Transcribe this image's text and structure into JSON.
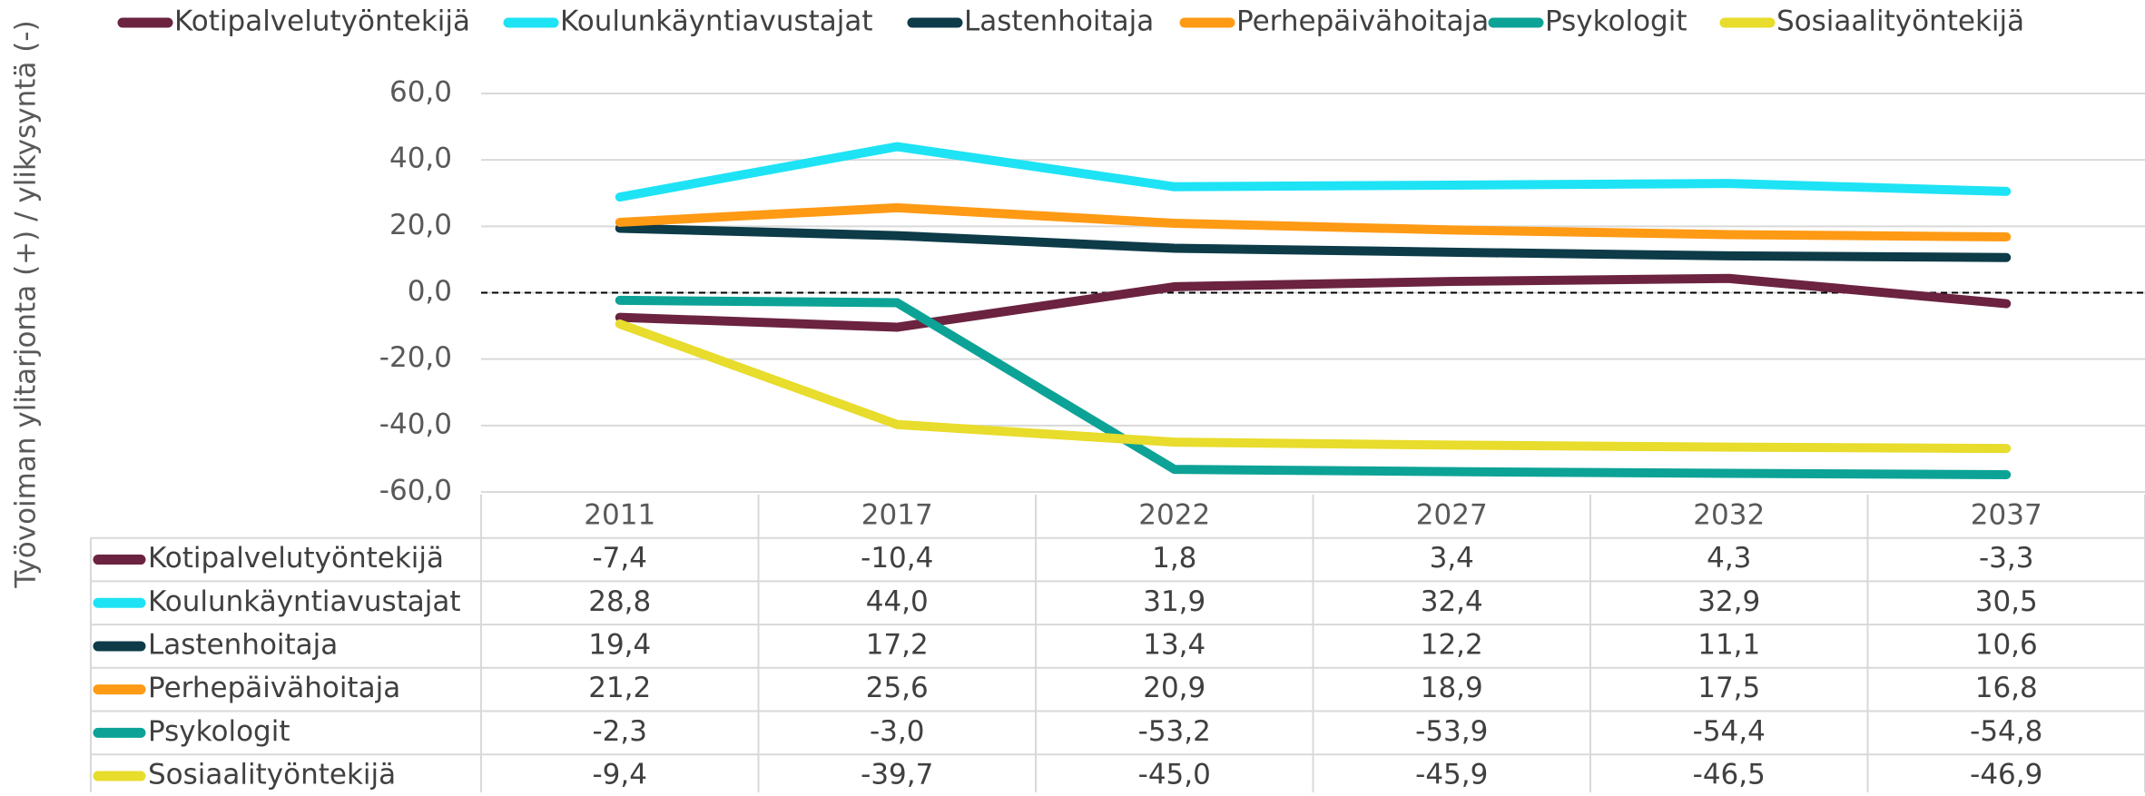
{
  "chart_data": {
    "type": "line",
    "y_label": "Työvoiman ylitarjonta (+) / ylikysyntä (-)",
    "categories": [
      "2011",
      "2017",
      "2022",
      "2027",
      "2032",
      "2037"
    ],
    "ylim": [
      -60,
      60
    ],
    "yticks": [
      {
        "value": -60,
        "label": "-60,0"
      },
      {
        "value": -40,
        "label": "-40,0"
      },
      {
        "value": -20,
        "label": "-20,0"
      },
      {
        "value": 0,
        "label": "0,0"
      },
      {
        "value": 20,
        "label": "20,0"
      },
      {
        "value": 40,
        "label": "40,0"
      },
      {
        "value": 60,
        "label": "60,0"
      }
    ],
    "grid": true,
    "legend": "top",
    "series": [
      {
        "name": "Kotipalvelutyöntekijä",
        "color": "#6b2340",
        "values": [
          -7.4,
          -10.4,
          1.8,
          3.4,
          4.3,
          -3.3
        ],
        "value_labels": [
          "-7,4",
          "-10,4",
          "1,8",
          "3,4",
          "4,3",
          "-3,3"
        ]
      },
      {
        "name": "Koulunkäyntiavustajat",
        "color": "#1ee3f5",
        "values": [
          28.8,
          44.0,
          31.9,
          32.4,
          32.9,
          30.5
        ],
        "value_labels": [
          "28,8",
          "44,0",
          "31,9",
          "32,4",
          "32,9",
          "30,5"
        ]
      },
      {
        "name": "Lastenhoitaja",
        "color": "#0d3b48",
        "values": [
          19.4,
          17.2,
          13.4,
          12.2,
          11.1,
          10.6
        ],
        "value_labels": [
          "19,4",
          "17,2",
          "13,4",
          "12,2",
          "11,1",
          "10,6"
        ]
      },
      {
        "name": "Perhepäivähoitaja",
        "color": "#ff9a15",
        "values": [
          21.2,
          25.6,
          20.9,
          18.9,
          17.5,
          16.8
        ],
        "value_labels": [
          "21,2",
          "25,6",
          "20,9",
          "18,9",
          "17,5",
          "16,8"
        ]
      },
      {
        "name": "Psykologit",
        "color": "#0ca396",
        "values": [
          -2.3,
          -3.0,
          -53.2,
          -53.9,
          -54.4,
          -54.8
        ],
        "value_labels": [
          "-2,3",
          "-3,0",
          "-53,2",
          "-53,9",
          "-54,4",
          "-54,8"
        ]
      },
      {
        "name": "Sosiaalityöntekijä",
        "color": "#e8dc2c",
        "values": [
          -9.4,
          -39.7,
          -45.0,
          -45.9,
          -46.5,
          -46.9
        ],
        "value_labels": [
          "-9,4",
          "-39,7",
          "-45,0",
          "-45,9",
          "-46,5",
          "-46,9"
        ]
      }
    ]
  }
}
